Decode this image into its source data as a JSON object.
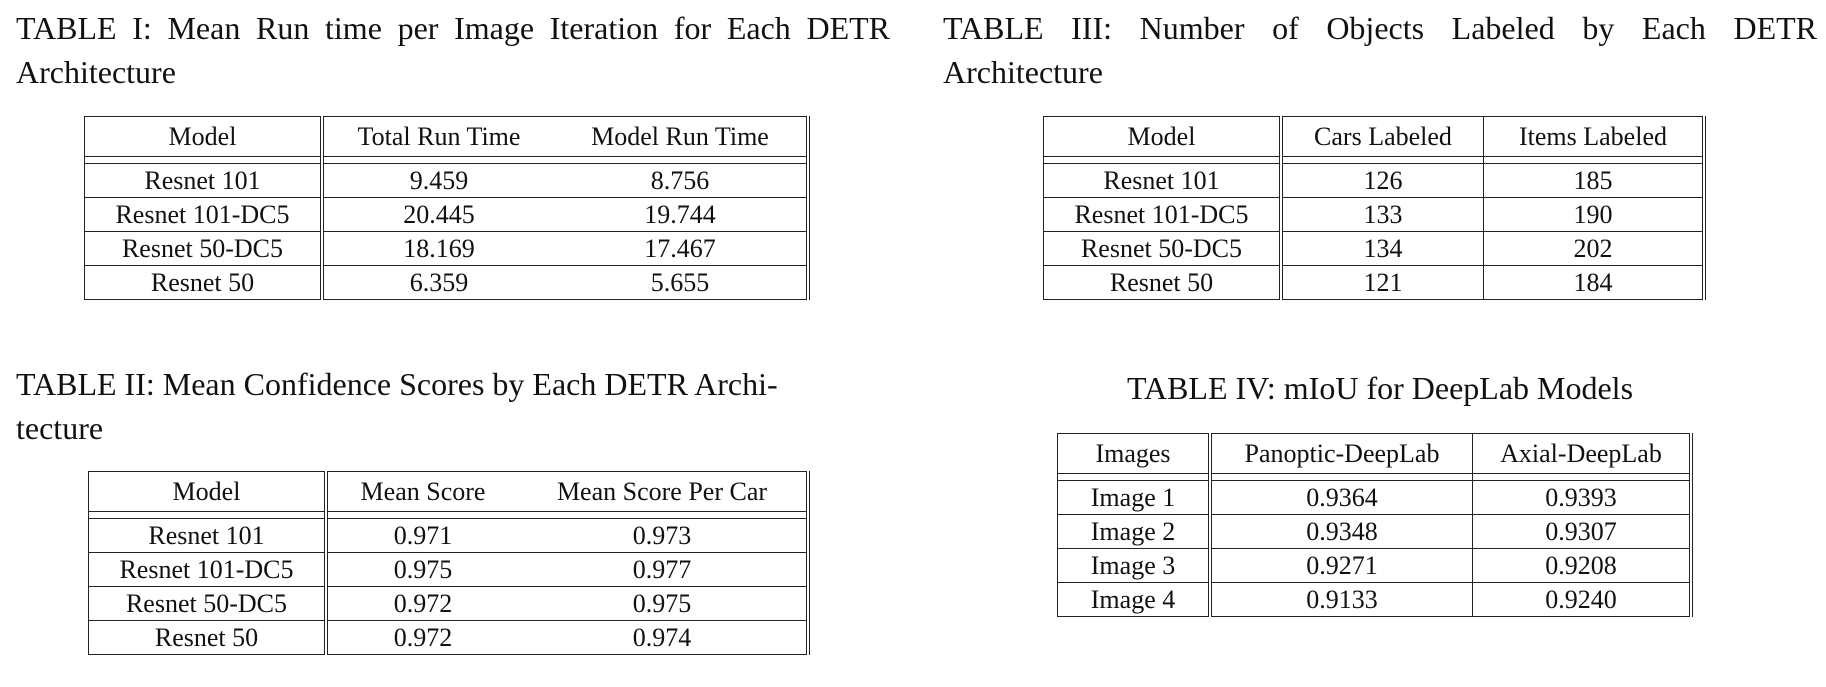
{
  "tables": [
    {
      "caption_label": "TABLE I:",
      "caption_text": "Mean Run time per Image Iteration for Each DETR Architecture",
      "headers": [
        "Model",
        "Total Run Time",
        "Model Run Time"
      ],
      "rows": [
        [
          "Resnet 101",
          "9.459",
          "8.756"
        ],
        [
          "Resnet 101-DC5",
          "20.445",
          "19.744"
        ],
        [
          "Resnet 50-DC5",
          "18.169",
          "17.467"
        ],
        [
          "Resnet 50",
          "6.359",
          "5.655"
        ]
      ]
    },
    {
      "caption_label": "TABLE II:",
      "caption_text": "Mean Confidence Scores by Each DETR Archi-tecture",
      "caption_line1": "Mean Confidence Scores by Each DETR Archi-",
      "caption_line2": "tecture",
      "headers": [
        "Model",
        "Mean Score",
        "Mean Score Per Car"
      ],
      "rows": [
        [
          "Resnet 101",
          "0.971",
          "0.973"
        ],
        [
          "Resnet 101-DC5",
          "0.975",
          "0.977"
        ],
        [
          "Resnet 50-DC5",
          "0.972",
          "0.975"
        ],
        [
          "Resnet 50",
          "0.972",
          "0.974"
        ]
      ]
    },
    {
      "caption_label": "TABLE III:",
      "caption_text": "Number of Objects Labeled by Each DETR Architecture",
      "headers": [
        "Model",
        "Cars Labeled",
        "Items Labeled"
      ],
      "rows": [
        [
          "Resnet 101",
          "126",
          "185"
        ],
        [
          "Resnet 101-DC5",
          "133",
          "190"
        ],
        [
          "Resnet 50-DC5",
          "134",
          "202"
        ],
        [
          "Resnet 50",
          "121",
          "184"
        ]
      ]
    },
    {
      "caption_label": "TABLE IV:",
      "caption_text": "mIoU for DeepLab Models",
      "headers": [
        "Images",
        "Panoptic-DeepLab",
        "Axial-DeepLab"
      ],
      "rows": [
        [
          "Image 1",
          "0.9364",
          "0.9393"
        ],
        [
          "Image 2",
          "0.9348",
          "0.9307"
        ],
        [
          "Image 3",
          "0.9271",
          "0.9208"
        ],
        [
          "Image 4",
          "0.9133",
          "0.9240"
        ]
      ]
    }
  ]
}
